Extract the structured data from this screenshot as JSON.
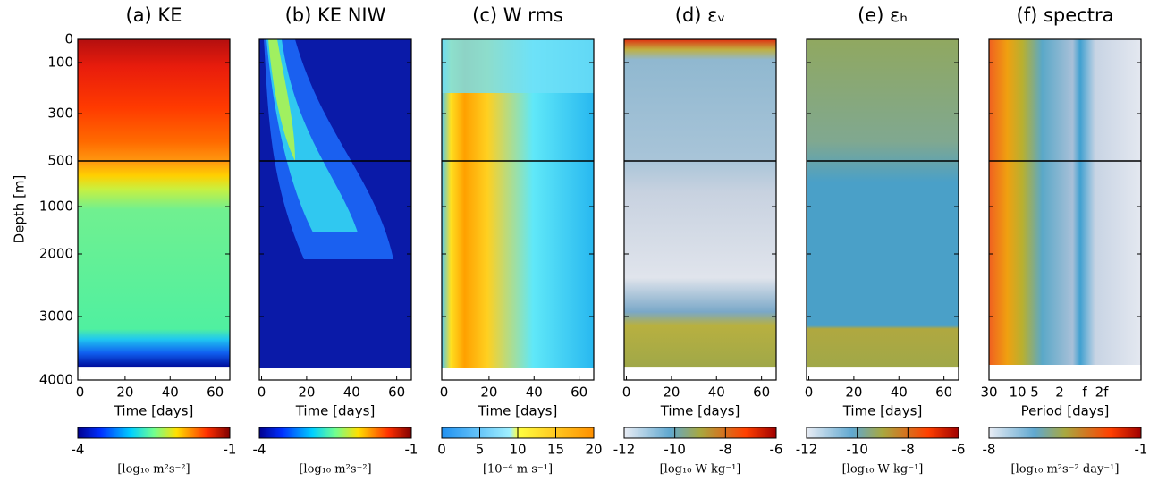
{
  "figure": {
    "depth_axis": {
      "label": "Depth [m]",
      "ticks": [
        0,
        100,
        300,
        500,
        1000,
        2000,
        3000,
        4000
      ]
    },
    "panels": [
      {
        "title": "(a)  KE",
        "x_label": "Time [days]",
        "xlim": [
          -1,
          66.5
        ],
        "xticks": [
          0,
          20,
          40,
          60
        ],
        "colorbar": {
          "lim": [
            -4,
            -1
          ],
          "ticks": [
            -4,
            -1
          ],
          "label": "[log₁₀  m²s⁻²]"
        }
      },
      {
        "title": "(b)  KE  NIW",
        "x_label": "Time [days]",
        "xlim": [
          -1,
          66.5
        ],
        "xticks": [
          0,
          20,
          40,
          60
        ],
        "colorbar": {
          "lim": [
            -4,
            -1
          ],
          "ticks": [
            -4,
            -1
          ],
          "label": "[log₁₀  m²s⁻²]"
        }
      },
      {
        "title": "(c)  W rms",
        "x_label": "Time [days]",
        "xlim": [
          -1,
          66.5
        ],
        "xticks": [
          0,
          20,
          40,
          60
        ],
        "colorbar": {
          "lim": [
            0,
            20
          ],
          "ticks": [
            0,
            5,
            10,
            15,
            20
          ],
          "label": "[10⁻⁴ m s⁻¹]"
        }
      },
      {
        "title": "(d)  εᵥ",
        "x_label": "Time [days]",
        "xlim": [
          -1,
          66.5
        ],
        "xticks": [
          0,
          20,
          40,
          60
        ],
        "colorbar": {
          "lim": [
            -12,
            -6
          ],
          "ticks": [
            -12,
            -10,
            -8,
            -6
          ],
          "label": "[log₁₀ W kg⁻¹]"
        }
      },
      {
        "title": "(e)  εₕ",
        "x_label": "Time [days]",
        "xlim": [
          -1,
          66.5
        ],
        "xticks": [
          0,
          20,
          40,
          60
        ],
        "colorbar": {
          "lim": [
            -12,
            -6
          ],
          "ticks": [
            -12,
            -10,
            -8,
            -6
          ],
          "label": "[log₁₀ W kg⁻¹]"
        }
      },
      {
        "title": "(f)  spectra",
        "x_label": "Period [days]",
        "xticks": [
          "30",
          "10",
          "5",
          "2",
          "f",
          "2f"
        ],
        "colorbar": {
          "lim": [
            -8,
            -1
          ],
          "ticks": [
            -8,
            -1
          ],
          "label": "[log₁₀  m²s⁻² day⁻¹]"
        }
      }
    ]
  }
}
